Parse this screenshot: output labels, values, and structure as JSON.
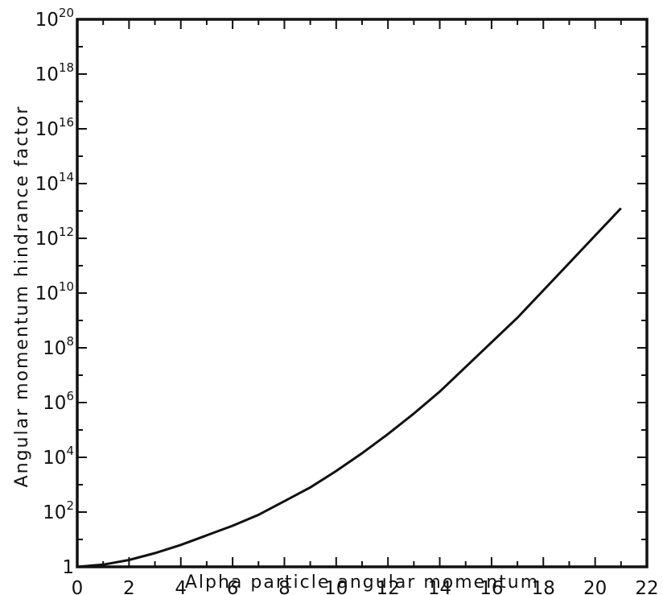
{
  "chart_data": {
    "type": "line",
    "title": "",
    "xlabel": "Alpha particle angular momentum",
    "ylabel": "Angular momentum hindrance factor",
    "xlim": [
      0,
      22
    ],
    "ylim_log10": [
      0,
      20
    ],
    "y_scale": "log",
    "grid": false,
    "x_ticks": [
      {
        "value": 0,
        "label": "0"
      },
      {
        "value": 2,
        "label": "2"
      },
      {
        "value": 4,
        "label": "4"
      },
      {
        "value": 6,
        "label": "6"
      },
      {
        "value": 8,
        "label": "8"
      },
      {
        "value": 10,
        "label": "10"
      },
      {
        "value": 12,
        "label": "12"
      },
      {
        "value": 14,
        "label": "14"
      },
      {
        "value": 16,
        "label": "16"
      },
      {
        "value": 18,
        "label": "18"
      },
      {
        "value": 20,
        "label": "20"
      },
      {
        "value": 22,
        "label": "22"
      }
    ],
    "y_ticks": [
      {
        "log10": 0,
        "base": "1",
        "exp": ""
      },
      {
        "log10": 2,
        "base": "10",
        "exp": "2"
      },
      {
        "log10": 4,
        "base": "10",
        "exp": "4"
      },
      {
        "log10": 6,
        "base": "10",
        "exp": "6"
      },
      {
        "log10": 8,
        "base": "10",
        "exp": "8"
      },
      {
        "log10": 10,
        "base": "10",
        "exp": "10"
      },
      {
        "log10": 12,
        "base": "10",
        "exp": "12"
      },
      {
        "log10": 14,
        "base": "10",
        "exp": "14"
      },
      {
        "log10": 16,
        "base": "10",
        "exp": "16"
      },
      {
        "log10": 18,
        "base": "10",
        "exp": "18"
      },
      {
        "log10": 20,
        "base": "10",
        "exp": "20"
      }
    ],
    "series": [
      {
        "x": [
          0,
          1,
          2,
          3,
          4,
          5,
          6,
          7,
          8,
          9,
          10,
          11,
          12,
          13,
          14,
          15,
          16,
          17,
          18,
          19,
          20,
          21
        ],
        "y_log10": [
          0,
          0.08,
          0.25,
          0.5,
          0.8,
          1.15,
          1.5,
          1.9,
          2.4,
          2.9,
          3.5,
          4.15,
          4.85,
          5.6,
          6.4,
          7.3,
          8.2,
          9.1,
          10.1,
          11.1,
          12.1,
          13.1
        ]
      }
    ]
  }
}
